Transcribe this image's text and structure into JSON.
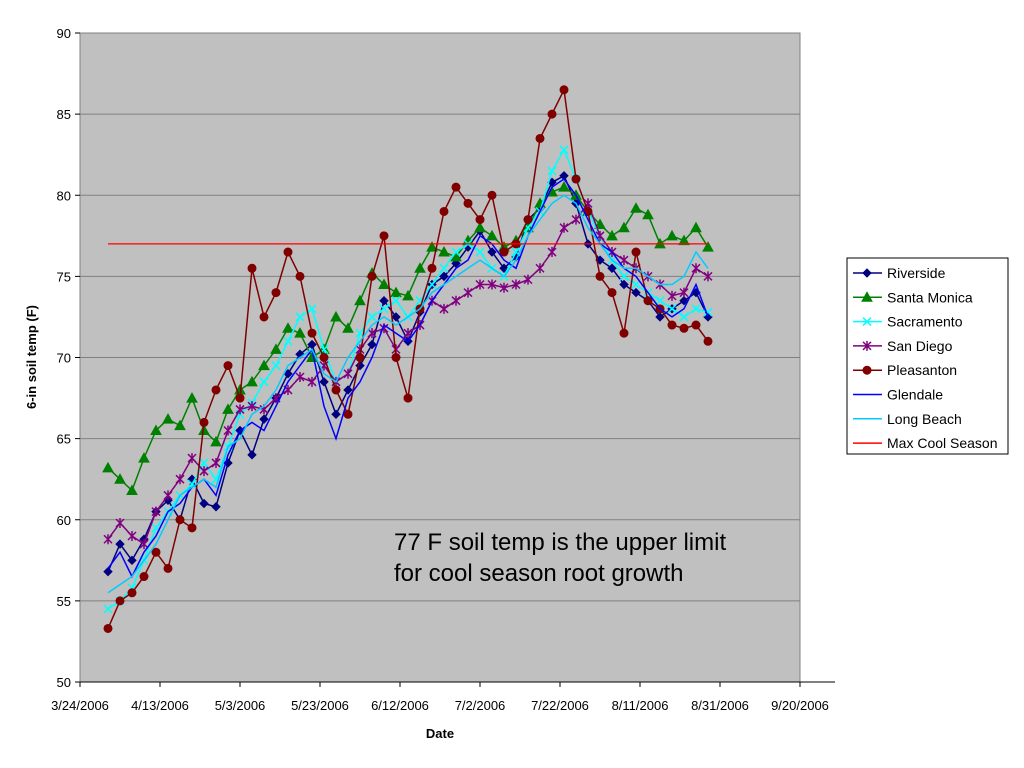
{
  "chart_data": {
    "type": "line",
    "xlabel": "Date",
    "ylabel": "6-in soil temp (F)",
    "ylim": [
      50,
      90
    ],
    "yticks": [
      "50",
      "55",
      "60",
      "65",
      "70",
      "75",
      "80",
      "85",
      "90"
    ],
    "xlim": [
      "2006-03-24",
      "2006-09-20"
    ],
    "xticks": [
      "3/24/2006",
      "4/13/2006",
      "5/3/2006",
      "5/23/2006",
      "6/12/2006",
      "7/2/2006",
      "7/22/2006",
      "8/11/2006",
      "8/31/2006",
      "9/20/2006"
    ],
    "grid": "horizontal",
    "legend_position": "right",
    "plot_background": "#c0c0c0",
    "annotation": "77 F soil temp is the upper limit for cool season root growth",
    "series": [
      {
        "name": "Riverside",
        "color": "#000080",
        "marker": "diamond",
        "x": [
          "2006-03-31",
          "2006-04-03",
          "2006-04-06",
          "2006-04-09",
          "2006-04-12",
          "2006-04-15",
          "2006-04-18",
          "2006-04-21",
          "2006-04-24",
          "2006-04-27",
          "2006-04-30",
          "2006-05-03",
          "2006-05-06",
          "2006-05-09",
          "2006-05-12",
          "2006-05-15",
          "2006-05-18",
          "2006-05-21",
          "2006-05-24",
          "2006-05-27",
          "2006-05-30",
          "2006-06-02",
          "2006-06-05",
          "2006-06-08",
          "2006-06-11",
          "2006-06-14",
          "2006-06-17",
          "2006-06-20",
          "2006-06-23",
          "2006-06-26",
          "2006-06-29",
          "2006-07-02",
          "2006-07-05",
          "2006-07-08",
          "2006-07-11",
          "2006-07-14",
          "2006-07-17",
          "2006-07-20",
          "2006-07-23",
          "2006-07-26",
          "2006-07-29",
          "2006-08-01",
          "2006-08-04",
          "2006-08-07",
          "2006-08-10",
          "2006-08-13",
          "2006-08-16",
          "2006-08-19",
          "2006-08-22",
          "2006-08-25",
          "2006-08-28"
        ],
        "y": [
          56.8,
          58.5,
          57.5,
          58.8,
          60.5,
          61.2,
          60.0,
          62.5,
          61.0,
          60.8,
          63.5,
          65.5,
          64.0,
          66.2,
          67.5,
          69.0,
          70.2,
          70.8,
          68.5,
          66.5,
          68.0,
          69.5,
          70.8,
          73.5,
          72.5,
          71.0,
          72.8,
          74.5,
          75.0,
          75.8,
          76.8,
          77.8,
          76.5,
          75.5,
          76.2,
          78.5,
          79.2,
          80.8,
          81.2,
          79.5,
          77.0,
          76.0,
          75.5,
          74.5,
          74.0,
          73.5,
          72.5,
          73.0,
          73.5,
          74.0,
          72.5
        ]
      },
      {
        "name": "Santa Monica",
        "color": "#008000",
        "marker": "triangle",
        "x": [
          "2006-03-31",
          "2006-04-03",
          "2006-04-06",
          "2006-04-09",
          "2006-04-12",
          "2006-04-15",
          "2006-04-18",
          "2006-04-21",
          "2006-04-24",
          "2006-04-27",
          "2006-04-30",
          "2006-05-03",
          "2006-05-06",
          "2006-05-09",
          "2006-05-12",
          "2006-05-15",
          "2006-05-18",
          "2006-05-21",
          "2006-05-24",
          "2006-05-27",
          "2006-05-30",
          "2006-06-02",
          "2006-06-05",
          "2006-06-08",
          "2006-06-11",
          "2006-06-14",
          "2006-06-17",
          "2006-06-20",
          "2006-06-23",
          "2006-06-26",
          "2006-06-29",
          "2006-07-02",
          "2006-07-05",
          "2006-07-08",
          "2006-07-11",
          "2006-07-14",
          "2006-07-17",
          "2006-07-20",
          "2006-07-23",
          "2006-07-26",
          "2006-07-29",
          "2006-08-01",
          "2006-08-04",
          "2006-08-07",
          "2006-08-10",
          "2006-08-13",
          "2006-08-16",
          "2006-08-19",
          "2006-08-22",
          "2006-08-25",
          "2006-08-28"
        ],
        "y": [
          63.2,
          62.5,
          61.8,
          63.8,
          65.5,
          66.2,
          65.8,
          67.5,
          65.5,
          64.8,
          66.8,
          68.0,
          68.5,
          69.5,
          70.5,
          71.8,
          71.5,
          70.0,
          70.5,
          72.5,
          71.8,
          73.5,
          75.2,
          74.5,
          74.0,
          73.8,
          75.5,
          76.8,
          76.5,
          76.2,
          77.2,
          78.0,
          77.5,
          76.8,
          77.2,
          78.0,
          79.5,
          80.2,
          80.5,
          80.0,
          79.0,
          78.2,
          77.5,
          78.0,
          79.2,
          78.8,
          77.0,
          77.5,
          77.2,
          78.0,
          76.8
        ]
      },
      {
        "name": "Sacramento",
        "color": "#00ffff",
        "marker": "x",
        "x": [
          "2006-03-31",
          "2006-04-03",
          "2006-04-06",
          "2006-04-09",
          "2006-04-12",
          "2006-04-15",
          "2006-04-18",
          "2006-04-21",
          "2006-04-24",
          "2006-04-27",
          "2006-04-30",
          "2006-05-03",
          "2006-05-06",
          "2006-05-09",
          "2006-05-12",
          "2006-05-15",
          "2006-05-18",
          "2006-05-21",
          "2006-05-24",
          "2006-05-27",
          "2006-05-30",
          "2006-06-02",
          "2006-06-05",
          "2006-06-08",
          "2006-06-11",
          "2006-06-14",
          "2006-06-17",
          "2006-06-20",
          "2006-06-23",
          "2006-06-26",
          "2006-06-29",
          "2006-07-02",
          "2006-07-05",
          "2006-07-08",
          "2006-07-11",
          "2006-07-14",
          "2006-07-17",
          "2006-07-20",
          "2006-07-23",
          "2006-07-26",
          "2006-07-29",
          "2006-08-01",
          "2006-08-04",
          "2006-08-07",
          "2006-08-10",
          "2006-08-13",
          "2006-08-16",
          "2006-08-19",
          "2006-08-22",
          "2006-08-25",
          "2006-08-28"
        ],
        "y": [
          54.5,
          55.0,
          55.8,
          57.5,
          59.5,
          60.5,
          61.5,
          62.2,
          63.5,
          62.5,
          64.5,
          66.5,
          67.2,
          68.5,
          69.5,
          71.0,
          72.5,
          73.0,
          70.5,
          68.5,
          69.0,
          71.5,
          72.5,
          73.0,
          73.5,
          72.5,
          73.5,
          74.5,
          75.5,
          76.5,
          77.0,
          76.5,
          75.5,
          75.0,
          76.5,
          78.0,
          79.0,
          81.5,
          82.8,
          81.0,
          79.0,
          77.5,
          76.0,
          75.0,
          74.5,
          74.0,
          73.5,
          73.0,
          72.5,
          73.0,
          72.8
        ]
      },
      {
        "name": "San Diego",
        "color": "#800080",
        "marker": "star",
        "x": [
          "2006-03-31",
          "2006-04-03",
          "2006-04-06",
          "2006-04-09",
          "2006-04-12",
          "2006-04-15",
          "2006-04-18",
          "2006-04-21",
          "2006-04-24",
          "2006-04-27",
          "2006-04-30",
          "2006-05-03",
          "2006-05-06",
          "2006-05-09",
          "2006-05-12",
          "2006-05-15",
          "2006-05-18",
          "2006-05-21",
          "2006-05-24",
          "2006-05-27",
          "2006-05-30",
          "2006-06-02",
          "2006-06-05",
          "2006-06-08",
          "2006-06-11",
          "2006-06-14",
          "2006-06-17",
          "2006-06-20",
          "2006-06-23",
          "2006-06-26",
          "2006-06-29",
          "2006-07-02",
          "2006-07-05",
          "2006-07-08",
          "2006-07-11",
          "2006-07-14",
          "2006-07-17",
          "2006-07-20",
          "2006-07-23",
          "2006-07-26",
          "2006-07-29",
          "2006-08-01",
          "2006-08-04",
          "2006-08-07",
          "2006-08-10",
          "2006-08-13",
          "2006-08-16",
          "2006-08-19",
          "2006-08-22",
          "2006-08-25",
          "2006-08-28"
        ],
        "y": [
          58.8,
          59.8,
          59.0,
          58.5,
          60.5,
          61.5,
          62.5,
          63.8,
          63.0,
          63.5,
          65.5,
          66.8,
          67.0,
          66.8,
          67.5,
          68.0,
          68.8,
          68.5,
          69.5,
          68.5,
          69.0,
          70.5,
          71.5,
          71.8,
          70.5,
          71.5,
          72.0,
          73.5,
          73.0,
          73.5,
          74.0,
          74.5,
          74.5,
          74.3,
          74.5,
          74.8,
          75.5,
          76.5,
          78.0,
          78.5,
          79.5,
          77.5,
          76.5,
          76.0,
          75.5,
          75.0,
          74.5,
          73.8,
          74.0,
          75.5,
          75.0
        ]
      },
      {
        "name": "Pleasanton",
        "color": "#800000",
        "marker": "circle",
        "x": [
          "2006-03-31",
          "2006-04-03",
          "2006-04-06",
          "2006-04-09",
          "2006-04-12",
          "2006-04-15",
          "2006-04-18",
          "2006-04-21",
          "2006-04-24",
          "2006-04-27",
          "2006-04-30",
          "2006-05-03",
          "2006-05-06",
          "2006-05-09",
          "2006-05-12",
          "2006-05-15",
          "2006-05-18",
          "2006-05-21",
          "2006-05-24",
          "2006-05-27",
          "2006-05-30",
          "2006-06-02",
          "2006-06-05",
          "2006-06-08",
          "2006-06-11",
          "2006-06-14",
          "2006-06-17",
          "2006-06-20",
          "2006-06-23",
          "2006-06-26",
          "2006-06-29",
          "2006-07-02",
          "2006-07-05",
          "2006-07-08",
          "2006-07-11",
          "2006-07-14",
          "2006-07-17",
          "2006-07-20",
          "2006-07-23",
          "2006-07-26",
          "2006-07-29",
          "2006-08-01",
          "2006-08-04",
          "2006-08-07",
          "2006-08-10",
          "2006-08-13",
          "2006-08-16",
          "2006-08-19",
          "2006-08-22",
          "2006-08-25",
          "2006-08-28"
        ],
        "y": [
          53.3,
          55.0,
          55.5,
          56.5,
          58.0,
          57.0,
          60.0,
          59.5,
          66.0,
          68.0,
          69.5,
          67.5,
          75.5,
          72.5,
          74.0,
          76.5,
          75.0,
          71.5,
          70.0,
          68.0,
          66.5,
          70.0,
          75.0,
          77.5,
          70.0,
          67.5,
          73.0,
          75.5,
          79.0,
          80.5,
          79.5,
          78.5,
          80.0,
          76.5,
          77.0,
          78.5,
          83.5,
          85.0,
          86.5,
          81.0,
          79.0,
          75.0,
          74.0,
          71.5,
          76.5,
          73.5,
          73.0,
          72.0,
          71.8,
          72.0,
          71.0
        ]
      },
      {
        "name": "Glendale",
        "color": "#0000ff",
        "marker": "line",
        "x": [
          "2006-03-31",
          "2006-04-03",
          "2006-04-06",
          "2006-04-09",
          "2006-04-12",
          "2006-04-15",
          "2006-04-18",
          "2006-04-21",
          "2006-04-24",
          "2006-04-27",
          "2006-04-30",
          "2006-05-03",
          "2006-05-06",
          "2006-05-09",
          "2006-05-12",
          "2006-05-15",
          "2006-05-18",
          "2006-05-21",
          "2006-05-24",
          "2006-05-27",
          "2006-05-30",
          "2006-06-02",
          "2006-06-05",
          "2006-06-08",
          "2006-06-11",
          "2006-06-14",
          "2006-06-17",
          "2006-06-20",
          "2006-06-23",
          "2006-06-26",
          "2006-06-29",
          "2006-07-02",
          "2006-07-05",
          "2006-07-08",
          "2006-07-11",
          "2006-07-14",
          "2006-07-17",
          "2006-07-20",
          "2006-07-23",
          "2006-07-26",
          "2006-07-29",
          "2006-08-01",
          "2006-08-04",
          "2006-08-07",
          "2006-08-10",
          "2006-08-13",
          "2006-08-16",
          "2006-08-19",
          "2006-08-22",
          "2006-08-25",
          "2006-08-28"
        ],
        "y": [
          57.0,
          58.0,
          56.5,
          58.0,
          59.0,
          60.5,
          61.0,
          62.0,
          62.5,
          61.5,
          64.0,
          65.5,
          66.0,
          65.5,
          67.0,
          68.5,
          69.5,
          70.5,
          67.0,
          65.0,
          67.5,
          68.5,
          70.0,
          72.0,
          71.5,
          71.0,
          72.0,
          73.5,
          74.5,
          75.5,
          76.0,
          77.5,
          77.0,
          76.0,
          75.5,
          77.5,
          79.0,
          80.5,
          81.0,
          80.0,
          78.5,
          77.0,
          76.5,
          75.5,
          75.0,
          74.0,
          73.0,
          72.5,
          73.0,
          74.5,
          72.5
        ]
      },
      {
        "name": "Long Beach",
        "color": "#00ccff",
        "marker": "line",
        "x": [
          "2006-03-31",
          "2006-04-03",
          "2006-04-06",
          "2006-04-09",
          "2006-04-12",
          "2006-04-15",
          "2006-04-18",
          "2006-04-21",
          "2006-04-24",
          "2006-04-27",
          "2006-04-30",
          "2006-05-03",
          "2006-05-06",
          "2006-05-09",
          "2006-05-12",
          "2006-05-15",
          "2006-05-18",
          "2006-05-21",
          "2006-05-24",
          "2006-05-27",
          "2006-05-30",
          "2006-06-02",
          "2006-06-05",
          "2006-06-08",
          "2006-06-11",
          "2006-06-14",
          "2006-06-17",
          "2006-06-20",
          "2006-06-23",
          "2006-06-26",
          "2006-06-29",
          "2006-07-02",
          "2006-07-05",
          "2006-07-08",
          "2006-07-11",
          "2006-07-14",
          "2006-07-17",
          "2006-07-20",
          "2006-07-23",
          "2006-07-26",
          "2006-07-29",
          "2006-08-01",
          "2006-08-04",
          "2006-08-07",
          "2006-08-10",
          "2006-08-13",
          "2006-08-16",
          "2006-08-19",
          "2006-08-22",
          "2006-08-25",
          "2006-08-28"
        ],
        "y": [
          55.5,
          56.0,
          56.5,
          57.5,
          58.5,
          60.0,
          61.5,
          62.0,
          62.5,
          62.0,
          64.5,
          65.0,
          66.5,
          67.0,
          68.0,
          69.5,
          70.0,
          70.5,
          69.0,
          68.5,
          70.0,
          71.0,
          72.0,
          72.5,
          72.0,
          72.5,
          73.0,
          74.0,
          74.5,
          75.0,
          75.5,
          76.0,
          75.5,
          75.0,
          76.0,
          77.5,
          78.5,
          79.5,
          80.0,
          79.5,
          78.0,
          77.0,
          76.0,
          75.5,
          75.5,
          75.0,
          74.5,
          74.5,
          75.0,
          76.5,
          75.5
        ]
      },
      {
        "name": "Max Cool Season",
        "color": "#ff0000",
        "marker": "none",
        "x": [
          "2006-03-31",
          "2006-08-28"
        ],
        "y": [
          77,
          77
        ]
      }
    ]
  }
}
